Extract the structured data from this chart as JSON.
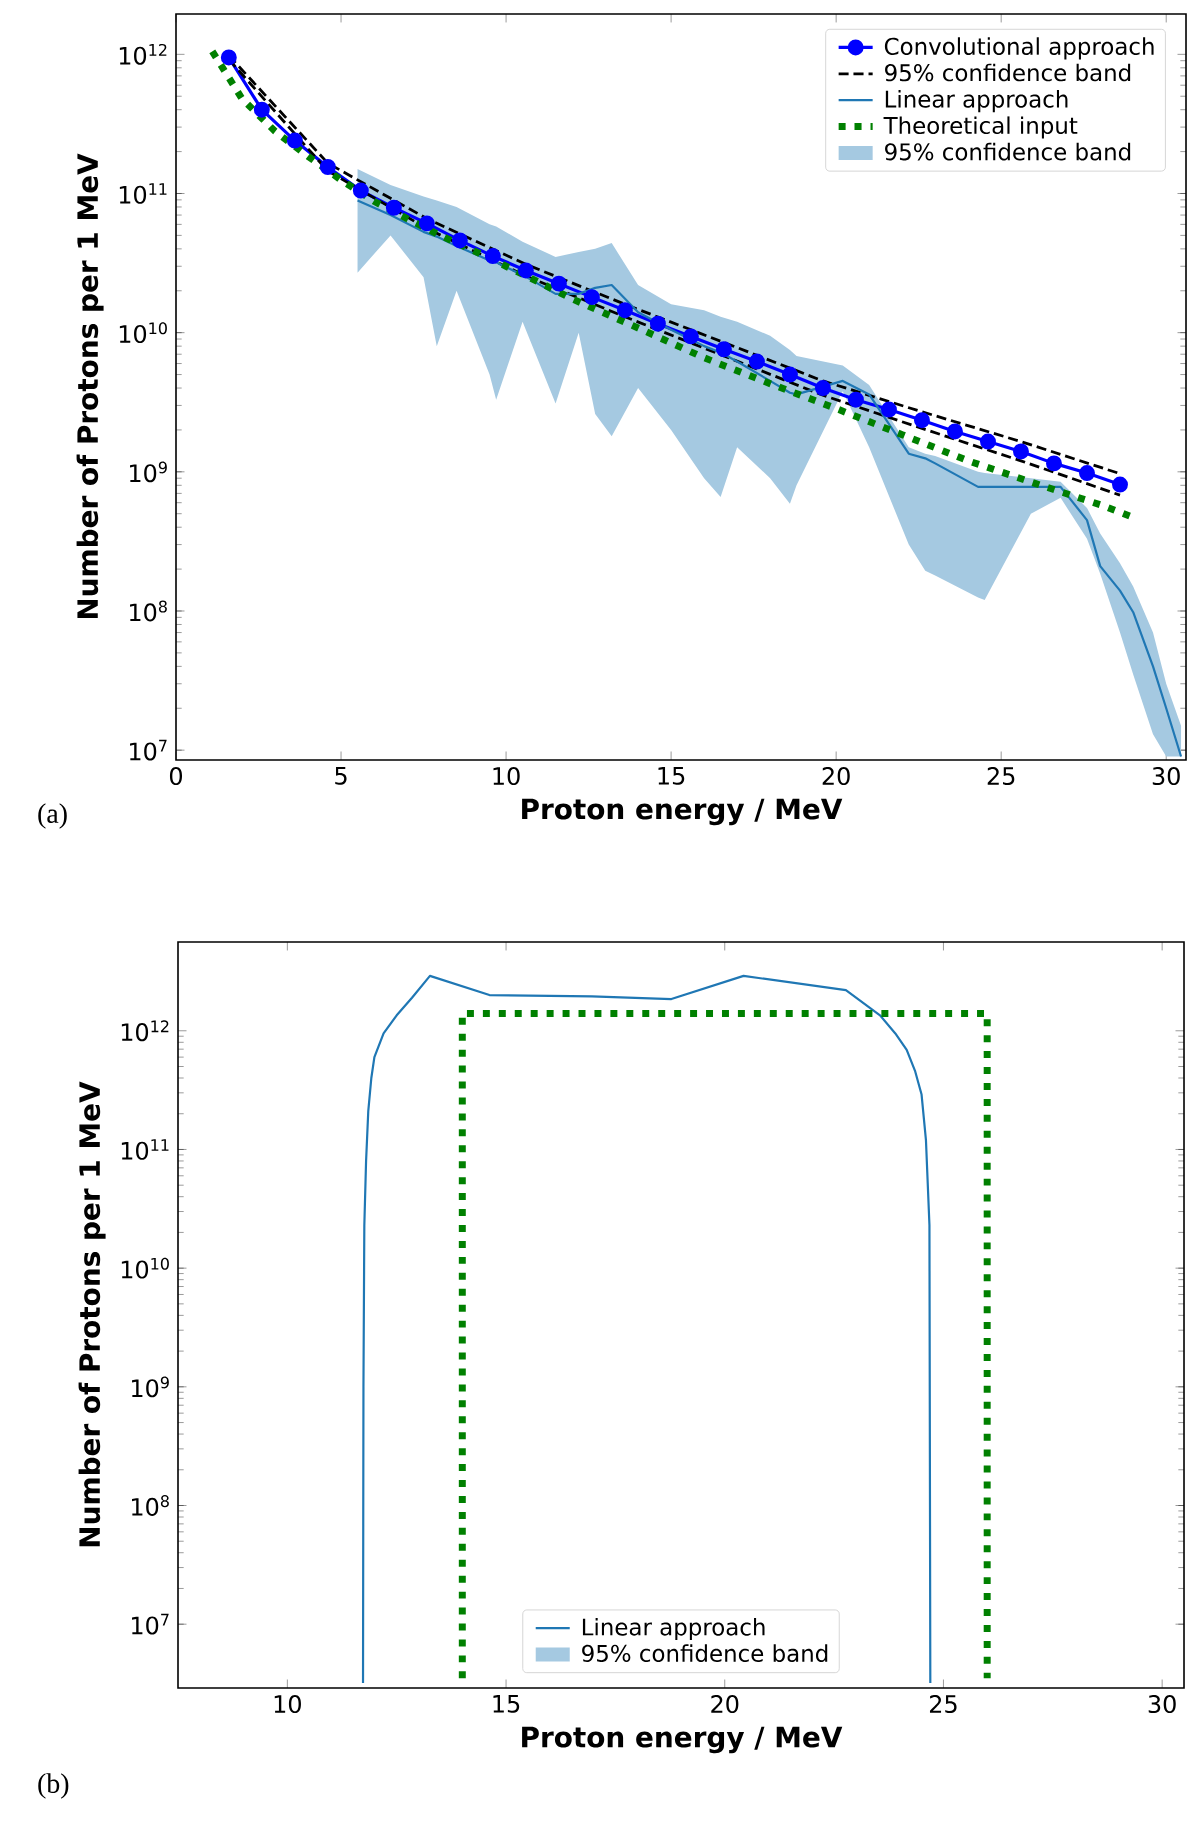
{
  "chart_data": [
    {
      "type": "line",
      "log": "y",
      "xlabel": "Proton energy / MeV",
      "ylabel": "Number of Protons per 1 MeV",
      "annotations": [
        "(a)",
        "95% confidence band"
      ],
      "legend": "top right",
      "xlim": [
        0,
        30.6
      ],
      "ylim": [
        8500000.0,
        1950000000000.0
      ],
      "xticks": [
        0,
        5,
        10,
        15,
        20,
        25,
        30
      ],
      "yticks": [
        {
          "value": 10000000.0,
          "label": "10$^{7}$"
        },
        {
          "value": 100000000.0,
          "label": "10$^{8}$"
        },
        {
          "value": 1000000000.0,
          "label": "10$^{9}$"
        },
        {
          "value": 10000000000.0,
          "label": "10$^{10}$"
        },
        {
          "value": 100000000000.0,
          "label": "10$^{11}$"
        },
        {
          "value": 1000000000000.0,
          "label": "10$^{12}$"
        }
      ],
      "series": [
        {
          "name": "Convolutional approach",
          "color": "#0000ff",
          "marker": "circle",
          "line_style": "solid",
          "x": [
            1.6,
            2.6,
            3.6,
            4.6,
            5.6,
            6.6,
            7.6,
            8.6,
            9.6,
            10.6,
            11.6,
            12.6,
            13.6,
            14.6,
            15.6,
            16.6,
            17.6,
            18.6,
            19.6,
            20.6,
            21.6,
            22.6,
            23.6,
            24.6,
            25.6,
            26.6,
            27.6,
            28.6
          ],
          "values": [
            950000000000.0,
            400000000000.0,
            240000000000.0,
            155000000000.0,
            105000000000.0,
            79000000000.0,
            61000000000.0,
            46000000000.0,
            35500000000.0,
            28000000000.0,
            22500000000.0,
            18000000000.0,
            14500000000.0,
            11600000000.0,
            9400000000.0,
            7600000000.0,
            6200000000.0,
            5000000000.0,
            4000000000.0,
            3300000000.0,
            2800000000.0,
            2350000000.0,
            1950000000.0,
            1650000000.0,
            1400000000.0,
            1150000000.0,
            980000000.0,
            810000000.0
          ]
        },
        {
          "name": "95% confidence band",
          "color": "#000000",
          "line_style": "dashed",
          "x": [
            1.6,
            4.6,
            7.6,
            10.6,
            13.6,
            16.6,
            19.6,
            22.6,
            25.6,
            28.6
          ],
          "values": [
            980000000000.0,
            165000000000.0,
            66000000000.0,
            31000000000.0,
            16000000000.0,
            8500000000.0,
            4500000000.0,
            2700000000.0,
            1650000000.0,
            970000000.0
          ]
        },
        {
          "color": "#000000",
          "line_style": "dashed",
          "x": [
            1.6,
            4.6,
            7.6,
            10.6,
            13.6,
            16.6,
            19.6,
            22.6,
            25.6,
            28.6
          ],
          "values": [
            920000000000.0,
            145000000000.0,
            56000000000.0,
            25500000000.0,
            13000000000.0,
            6800000000.0,
            3550000000.0,
            2050000000.0,
            1200000000.0,
            680000000.0
          ]
        },
        {
          "name": "Linear approach",
          "color": "#1f77b4",
          "line_style": "solid",
          "x": [
            5.5,
            6.5,
            7.5,
            7.9,
            8.5,
            9.5,
            9.7,
            10.5,
            11.5,
            12.2,
            12.7,
            13.2,
            14.0,
            15,
            16,
            16.5,
            17,
            18,
            18.6,
            18.8,
            20.2,
            21,
            22.2,
            22.7,
            23,
            24.3,
            24.5,
            25.9,
            26.8,
            27.6,
            28.0,
            28.6,
            29.0,
            29.6,
            30.0,
            30.45
          ],
          "values": [
            89000000000.0,
            70000000000.0,
            53000000000.0,
            49000000000.0,
            42000000000.0,
            33000000000.0,
            32000000000.0,
            26000000000.0,
            19000000000.0,
            19000000000.0,
            21000000000.0,
            22000000000.0,
            14000000000.0,
            10500000000.0,
            8000000000.0,
            7200000000.0,
            6200000000.0,
            4500000000.0,
            3700000000.0,
            3600000000.0,
            4500000000.0,
            3600000000.0,
            1350000000.0,
            1250000000.0,
            1150000000.0,
            780000000.0,
            780000000.0,
            780000000.0,
            780000000.0,
            450000000.0,
            210000000.0,
            140000000.0,
            98000000.0,
            40000000.0,
            20000000.0,
            9000000.0
          ],
          "lower": [
            27000000000.0,
            50000000000.0,
            25000000000.0,
            8000000000.0,
            20000000000.0,
            5000000000.0,
            3300000000.0,
            12000000000.0,
            3100000000.0,
            10000000000.0,
            2600000000.0,
            1800000000.0,
            4000000000.0,
            2000000000.0,
            900000000.0,
            660000000.0,
            1500000000.0,
            900000000.0,
            590000000.0,
            800000000.0,
            3800000000.0,
            1500000000.0,
            300000000.0,
            195000000.0,
            180000000.0,
            125000000.0,
            120000000.0,
            500000000.0,
            650000000.0,
            330000000.0,
            185000000.0,
            70000000.0,
            35000000.0,
            13000000.0,
            9000000.0,
            9000000.0
          ],
          "upper": [
            150000000000.0,
            115000000000.0,
            95000000000.0,
            89000000000.0,
            80000000000.0,
            60000000000.0,
            58000000000.0,
            45000000000.0,
            35000000000.0,
            38000000000.0,
            40000000000.0,
            44000000000.0,
            22000000000.0,
            16000000000.0,
            14500000000.0,
            13000000000.0,
            12000000000.0,
            9500000000.0,
            7500000000.0,
            6800000000.0,
            5800000000.0,
            4200000000.0,
            1500000000.0,
            1350000000.0,
            1300000000.0,
            1000000000.0,
            980000000.0,
            900000000.0,
            850000000.0,
            550000000.0,
            360000000.0,
            220000000.0,
            150000000.0,
            70000000.0,
            30000000.0,
            15000000.0
          ]
        },
        {
          "name": "Theoretical input",
          "color": "#008000",
          "line_style": "dotted",
          "x": [
            1.1,
            2,
            3,
            4,
            5,
            6,
            7,
            8,
            9,
            10,
            11,
            12,
            14,
            16,
            18,
            20,
            22,
            24,
            26,
            28,
            29
          ],
          "values": [
            1050000000000.0,
            480000000000.0,
            280000000000.0,
            185000000000.0,
            125000000000.0,
            88000000000.0,
            66000000000.0,
            50000000000.0,
            39000000000.0,
            30000000000.0,
            23000000000.0,
            17500000000.0,
            10800000000.0,
            6600000000.0,
            4300000000.0,
            2850000000.0,
            1850000000.0,
            1200000000.0,
            830000000.0,
            580000000.0,
            470000000.0
          ]
        }
      ]
    },
    {
      "type": "line",
      "log": "y",
      "xlabel": "Proton energy / MeV",
      "ylabel": "Number of Protons per 1 MeV",
      "annotations": [
        "(b)",
        "95% confidence band"
      ],
      "legend": "bottom",
      "xlim": [
        7.5,
        30.5
      ],
      "ylim": [
        2900000.0,
        5600000000000.0
      ],
      "xticks": [
        10,
        15,
        20,
        25,
        30
      ],
      "yticks": [
        {
          "value": 10000000.0,
          "label": "10$^{7}$"
        },
        {
          "value": 100000000.0,
          "label": "10$^{8}$"
        },
        {
          "value": 1000000000.0,
          "label": "10$^{9}$"
        },
        {
          "value": 10000000000.0,
          "label": "10$^{10}$"
        },
        {
          "value": 100000000000.0,
          "label": "10$^{11}$"
        },
        {
          "value": 1000000000000.0,
          "label": "10$^{12}$"
        }
      ],
      "series": [
        {
          "name": "Linear approach",
          "color": "#1f77b4",
          "line_style": "solid",
          "x": [
            11.73,
            11.74,
            11.76,
            11.8,
            11.85,
            11.92,
            11.99,
            12.2,
            12.5,
            12.85,
            13.26,
            14.62,
            16.96,
            18.78,
            20.43,
            22.77,
            23.55,
            23.9,
            24.16,
            24.35,
            24.5,
            24.6,
            24.68,
            24.7
          ],
          "values": [
            3200000.0,
            1000000000.0,
            23000000000.0,
            80000000000.0,
            210000000000.0,
            400000000000.0,
            600000000000.0,
            950000000000.0,
            1350000000000.0,
            1900000000000.0,
            2900000000000.0,
            2000000000000.0,
            1950000000000.0,
            1850000000000.0,
            2900000000000.0,
            2200000000000.0,
            1350000000000.0,
            950000000000.0,
            690000000000.0,
            460000000000.0,
            290000000000.0,
            120000000000.0,
            23000000000.0,
            3200000.0
          ]
        },
        {
          "color": "#008000",
          "line_style": "dotted",
          "x": [
            14,
            14,
            26,
            26
          ],
          "values": [
            3500000.0,
            1400000000000.0,
            1400000000000.0,
            3500000.0
          ]
        }
      ]
    }
  ]
}
